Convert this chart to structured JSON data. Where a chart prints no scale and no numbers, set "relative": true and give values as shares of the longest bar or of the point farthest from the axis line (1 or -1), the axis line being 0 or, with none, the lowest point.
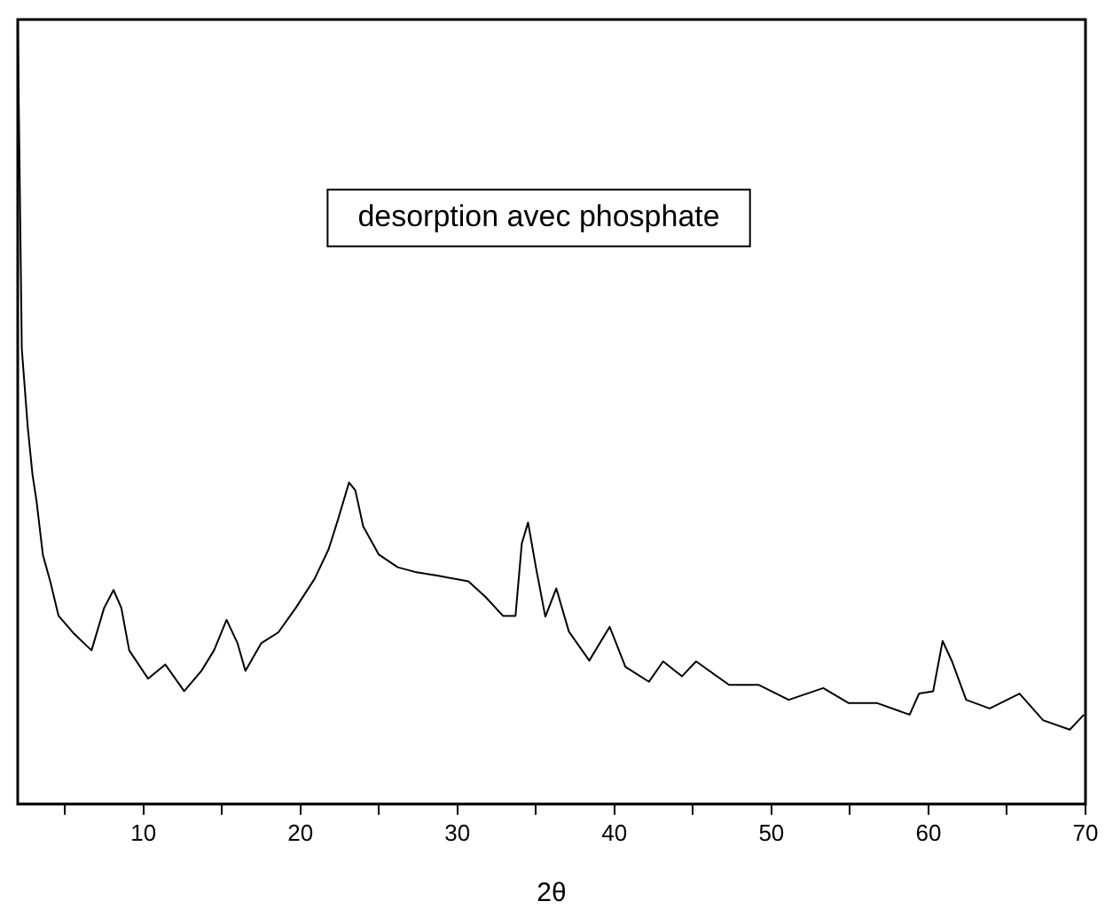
{
  "chart_data": {
    "type": "line",
    "xlabel": "2θ",
    "relative": true,
    "color": "#000000",
    "annotations": [
      "desorption avec phosphate"
    ],
    "xlim": [
      2,
      70
    ],
    "xticks": [
      {
        "value": 5,
        "label": null
      },
      10,
      {
        "value": 15,
        "label": null
      },
      20,
      {
        "value": 25,
        "label": null
      },
      30,
      {
        "value": 35,
        "label": null
      },
      40,
      {
        "value": 45,
        "label": null
      },
      50,
      {
        "value": 55,
        "label": null
      },
      60,
      {
        "value": 65,
        "label": null
      },
      70
    ],
    "grid": false,
    "legend": false,
    "marker": "none",
    "x": [
      2.0,
      2.26,
      2.64,
      2.94,
      3.2,
      3.6,
      4.07,
      4.6,
      5.6,
      6.7,
      7.5,
      8.1,
      8.6,
      9.1,
      10.3,
      11.4,
      12.6,
      13.7,
      14.5,
      15.3,
      16.0,
      16.5,
      17.5,
      18.6,
      19.7,
      20.9,
      21.8,
      22.4,
      23.1,
      23.5,
      24.0,
      25.0,
      26.2,
      27.3,
      28.8,
      30.7,
      31.8,
      32.9,
      33.7,
      34.1,
      34.5,
      35.0,
      35.6,
      36.3,
      37.1,
      38.4,
      39.7,
      40.7,
      42.2,
      43.1,
      44.3,
      45.2,
      47.3,
      49.2,
      51.1,
      53.3,
      54.9,
      56.7,
      58.8,
      59.4,
      60.3,
      60.9,
      61.5,
      62.4,
      63.9,
      65.8,
      67.3,
      69.0,
      69.9
    ],
    "values": [
      1.0,
      0.58,
      0.48,
      0.42,
      0.386,
      0.318,
      0.284,
      0.24,
      0.217,
      0.196,
      0.25,
      0.273,
      0.25,
      0.196,
      0.16,
      0.178,
      0.144,
      0.17,
      0.196,
      0.235,
      0.205,
      0.17,
      0.205,
      0.219,
      0.25,
      0.287,
      0.325,
      0.363,
      0.41,
      0.4,
      0.354,
      0.318,
      0.302,
      0.296,
      0.291,
      0.284,
      0.264,
      0.24,
      0.24,
      0.332,
      0.359,
      0.302,
      0.239,
      0.275,
      0.22,
      0.183,
      0.226,
      0.175,
      0.156,
      0.182,
      0.163,
      0.182,
      0.152,
      0.152,
      0.133,
      0.148,
      0.129,
      0.129,
      0.114,
      0.141,
      0.144,
      0.208,
      0.182,
      0.133,
      0.122,
      0.141,
      0.107,
      0.095,
      0.114
    ]
  }
}
